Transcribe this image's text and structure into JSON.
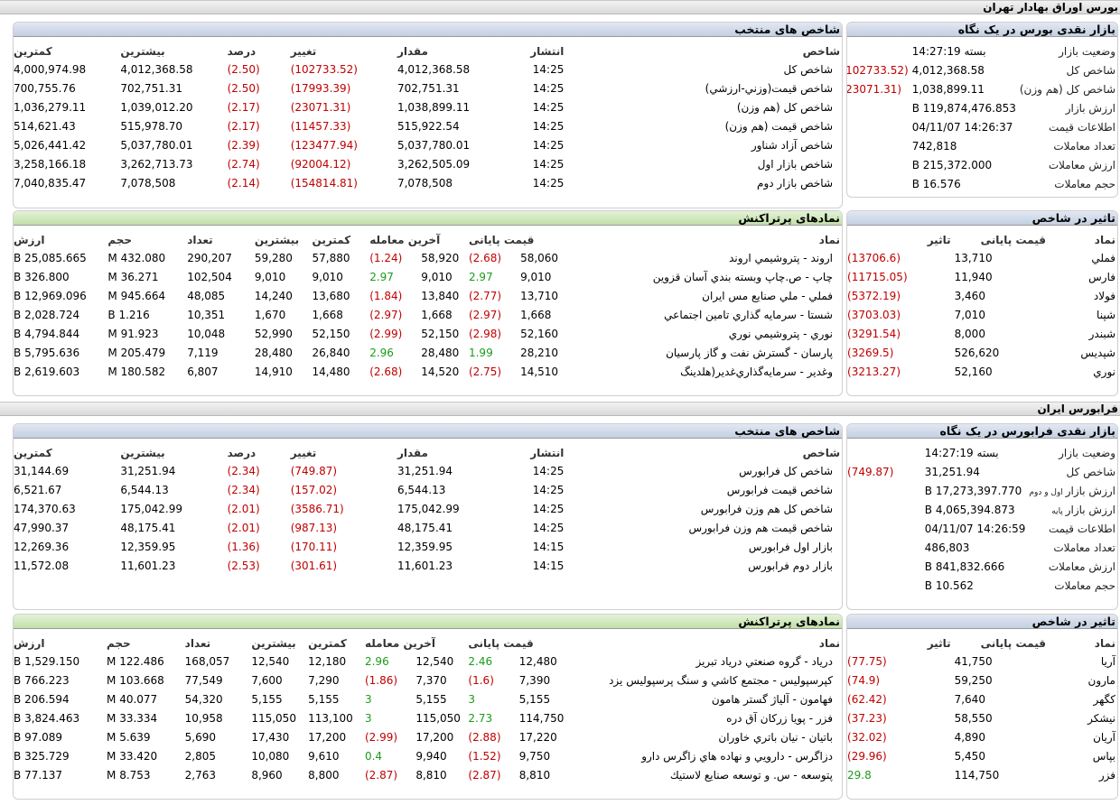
{
  "tse": {
    "title": "بورس اوراق بهادار تهران",
    "summary": {
      "title": "بازار نقدی بورس در یک نگاه",
      "rows": [
        {
          "label": "وضعیت بازار",
          "value": "بسته 14:27:19",
          "change": ""
        },
        {
          "label": "شاخص کل",
          "value": "4,012,368.58",
          "change": "(102733.52)"
        },
        {
          "label": "شاخص کل (هم وزن)",
          "value": "1,038,899.11",
          "change": "(23071.31)"
        },
        {
          "label": "ارزش بازار",
          "value": "119,874,476.853 B",
          "change": ""
        },
        {
          "label": "اطلاعات قیمت",
          "value": "14:26:37 04/11/07",
          "change": ""
        },
        {
          "label": "تعداد معاملات",
          "value": "742,818",
          "change": ""
        },
        {
          "label": "ارزش معاملات",
          "value": "215,372.000 B",
          "change": ""
        },
        {
          "label": "حجم معاملات",
          "value": "16.576 B",
          "change": ""
        }
      ]
    },
    "indices": {
      "title": "شاخص های منتخب",
      "headers": [
        "شاخص",
        "انتشار",
        "مقدار",
        "تغییر",
        "درصد",
        "بیشترین",
        "کمترین"
      ],
      "rows": [
        {
          "name": "شاخص كل",
          "time": "14:25",
          "value": "4,012,368.58",
          "change": "(102733.52)",
          "pct": "(2.50)",
          "high": "4,012,368.58",
          "low": "4,000,974.98"
        },
        {
          "name": "شاخص قيمت(وزني-ارزشي)",
          "time": "14:25",
          "value": "702,751.31",
          "change": "(17993.39)",
          "pct": "(2.50)",
          "high": "702,751.31",
          "low": "700,755.76"
        },
        {
          "name": "شاخص كل (هم وزن)",
          "time": "14:25",
          "value": "1,038,899.11",
          "change": "(23071.31)",
          "pct": "(2.17)",
          "high": "1,039,012.20",
          "low": "1,036,279.11"
        },
        {
          "name": "شاخص قيمت (هم وزن)",
          "time": "14:25",
          "value": "515,922.54",
          "change": "(11457.33)",
          "pct": "(2.17)",
          "high": "515,978.70",
          "low": "514,621.43"
        },
        {
          "name": "شاخص آزاد شناور",
          "time": "14:25",
          "value": "5,037,780.01",
          "change": "(123477.94)",
          "pct": "(2.39)",
          "high": "5,037,780.01",
          "low": "5,026,441.42"
        },
        {
          "name": "شاخص بازار اول",
          "time": "14:25",
          "value": "3,262,505.09",
          "change": "(92004.12)",
          "pct": "(2.74)",
          "high": "3,262,713.73",
          "low": "3,258,166.18"
        },
        {
          "name": "شاخص بازار دوم",
          "time": "14:25",
          "value": "7,078,508",
          "change": "(154814.81)",
          "pct": "(2.14)",
          "high": "7,078,508",
          "low": "7,040,835.47"
        }
      ]
    },
    "impact": {
      "title": "تاثیر در شاخص",
      "headers": [
        "نماد",
        "قیمت پایانی",
        "تاثیر"
      ],
      "rows": [
        {
          "sym": "فملي",
          "price": "13,710",
          "effect": "(13706.6)"
        },
        {
          "sym": "فارس",
          "price": "11,940",
          "effect": "(11715.05)"
        },
        {
          "sym": "فولاد",
          "price": "3,460",
          "effect": "(5372.19)"
        },
        {
          "sym": "شپنا",
          "price": "7,010",
          "effect": "(3703.03)"
        },
        {
          "sym": "شبندر",
          "price": "8,000",
          "effect": "(3291.54)"
        },
        {
          "sym": "شپديس",
          "price": "526,620",
          "effect": "(3269.5)"
        },
        {
          "sym": "نوري",
          "price": "52,160",
          "effect": "(3213.27)"
        }
      ]
    },
    "active": {
      "title": "نمادهای پرتراکنش",
      "headers": [
        "نماد",
        "قیمت پایانی",
        "آخرین معامله",
        "کمترین",
        "بیشترین",
        "تعداد",
        "حجم",
        "ارزش"
      ],
      "rows": [
        {
          "sym": "اروند - پتروشيمي اروند",
          "close": "58,060",
          "closeChg": "(2.68)",
          "last": "58,920",
          "lastChg": "(1.24)",
          "low": "57,880",
          "high": "59,280",
          "count": "290,207",
          "vol": "432.080 M",
          "val": "25,085.665 B"
        },
        {
          "sym": "چاپ - ص.چاپ وبسته بندي آسان قزوين",
          "close": "9,010",
          "closeChg": "2.97",
          "last": "9,010",
          "lastChg": "2.97",
          "low": "9,010",
          "high": "9,010",
          "count": "102,504",
          "vol": "36.271 M",
          "val": "326.800 B"
        },
        {
          "sym": "فملي - ملي صنايع مس ايران",
          "close": "13,710",
          "closeChg": "(2.77)",
          "last": "13,840",
          "lastChg": "(1.84)",
          "low": "13,680",
          "high": "14,240",
          "count": "48,085",
          "vol": "945.664 M",
          "val": "12,969.096 B"
        },
        {
          "sym": "شستا - سرمايه گذاري تامين اجتماعي",
          "close": "1,668",
          "closeChg": "(2.97)",
          "last": "1,668",
          "lastChg": "(2.97)",
          "low": "1,668",
          "high": "1,670",
          "count": "10,351",
          "vol": "1.216 B",
          "val": "2,028.724 B"
        },
        {
          "sym": "نوري - پتروشيمي نوري",
          "close": "52,160",
          "closeChg": "(2.98)",
          "last": "52,150",
          "lastChg": "(2.99)",
          "low": "52,150",
          "high": "52,990",
          "count": "10,048",
          "vol": "91.923 M",
          "val": "4,794.844 B"
        },
        {
          "sym": "پارسان - گسترش نفت و گاز پارسيان",
          "close": "28,210",
          "closeChg": "1.99",
          "last": "28,480",
          "lastChg": "2.96",
          "low": "26,840",
          "high": "28,480",
          "count": "7,119",
          "vol": "205.479 M",
          "val": "5,795.636 B"
        },
        {
          "sym": "وغدير - سرمايه‌گذاري‌غدير(هلدينگ",
          "close": "14,510",
          "closeChg": "(2.75)",
          "last": "14,520",
          "lastChg": "(2.68)",
          "low": "14,480",
          "high": "14,910",
          "count": "6,807",
          "vol": "180.582 M",
          "val": "2,619.603 B"
        }
      ]
    }
  },
  "ifb": {
    "title": "فرابورس ایران",
    "summary": {
      "title": "بازار نقدی فرابورس در یک نگاه",
      "rows": [
        {
          "label": "وضعیت بازار",
          "small": "",
          "value": "بسته 14:27:19",
          "change": ""
        },
        {
          "label": "شاخص کل",
          "small": "",
          "value": "31,251.94",
          "change": "(749.87)"
        },
        {
          "label": "ارزش بازار",
          "small": "اول و دوم",
          "value": "17,273,397.770 B",
          "change": ""
        },
        {
          "label": "ارزش بازار",
          "small": "پایه",
          "value": "4,065,394.873 B",
          "change": ""
        },
        {
          "label": "اطلاعات قیمت",
          "small": "",
          "value": "14:26:59 04/11/07",
          "change": ""
        },
        {
          "label": "تعداد معاملات",
          "small": "",
          "value": "486,803",
          "change": ""
        },
        {
          "label": "ارزش معاملات",
          "small": "",
          "value": "841,832.666 B",
          "change": ""
        },
        {
          "label": "حجم معاملات",
          "small": "",
          "value": "10.562 B",
          "change": ""
        }
      ]
    },
    "indices": {
      "title": "شاخص های منتخب",
      "headers": [
        "شاخص",
        "انتشار",
        "مقدار",
        "تغییر",
        "درصد",
        "بیشترین",
        "کمترین"
      ],
      "rows": [
        {
          "name": "شاخص كل فرابورس",
          "time": "14:25",
          "value": "31,251.94",
          "change": "(749.87)",
          "pct": "(2.34)",
          "high": "31,251.94",
          "low": "31,144.69"
        },
        {
          "name": "شاخص قيمت فرابورس",
          "time": "14:25",
          "value": "6,544.13",
          "change": "(157.02)",
          "pct": "(2.34)",
          "high": "6,544.13",
          "low": "6,521.67"
        },
        {
          "name": "شاخص کل هم وزن فرابورس",
          "time": "14:25",
          "value": "175,042.99",
          "change": "(3586.71)",
          "pct": "(2.01)",
          "high": "175,042.99",
          "low": "174,370.63"
        },
        {
          "name": "شاخص قیمت هم وزن فرابورس",
          "time": "14:25",
          "value": "48,175.41",
          "change": "(987.13)",
          "pct": "(2.01)",
          "high": "48,175.41",
          "low": "47,990.37"
        },
        {
          "name": "بازار اول فرابورس",
          "time": "14:15",
          "value": "12,359.95",
          "change": "(170.11)",
          "pct": "(1.36)",
          "high": "12,359.95",
          "low": "12,269.36"
        },
        {
          "name": "بازار دوم فرابورس",
          "time": "14:15",
          "value": "11,601.23",
          "change": "(301.61)",
          "pct": "(2.53)",
          "high": "11,601.23",
          "low": "11,572.08"
        }
      ]
    },
    "impact": {
      "title": "تاثیر در شاخص",
      "headers": [
        "نماد",
        "قیمت پایانی",
        "تاثیر"
      ],
      "rows": [
        {
          "sym": "آريا",
          "price": "41,750",
          "effect": "(77.75)"
        },
        {
          "sym": "مارون",
          "price": "59,250",
          "effect": "(74.9)"
        },
        {
          "sym": "كگهر",
          "price": "7,640",
          "effect": "(62.42)"
        },
        {
          "sym": "نيشكر",
          "price": "58,550",
          "effect": "(37.23)"
        },
        {
          "sym": "آريان",
          "price": "4,890",
          "effect": "(32.02)"
        },
        {
          "sym": "بپاس",
          "price": "5,450",
          "effect": "(29.96)"
        },
        {
          "sym": "فزر",
          "price": "114,750",
          "effect": "29.8"
        }
      ]
    },
    "active": {
      "title": "نمادهای پرتراکنش",
      "headers": [
        "نماد",
        "قیمت پایانی",
        "آخرین معامله",
        "کمترین",
        "بیشترین",
        "تعداد",
        "حجم",
        "ارزش"
      ],
      "rows": [
        {
          "sym": "درياد - گروه صنعتي درياد تبريز",
          "close": "12,480",
          "closeChg": "2.46",
          "last": "12,540",
          "lastChg": "2.96",
          "low": "12,180",
          "high": "12,540",
          "count": "168,057",
          "vol": "122.486 M",
          "val": "1,529.150 B"
        },
        {
          "sym": "كپرسپوليس - مجتمع كاشي و سنگ پرسپوليس يزد",
          "close": "7,390",
          "closeChg": "(1.6)",
          "last": "7,370",
          "lastChg": "(1.86)",
          "low": "7,290",
          "high": "7,600",
          "count": "77,549",
          "vol": "103.668 M",
          "val": "766.223 B"
        },
        {
          "sym": "فهامون - آلیاژ گستر هامون",
          "close": "5,155",
          "closeChg": "3",
          "last": "5,155",
          "lastChg": "3",
          "low": "5,155",
          "high": "5,155",
          "count": "54,320",
          "vol": "40.077 M",
          "val": "206.594 B"
        },
        {
          "sym": "فزر - پويا زركان آق دره",
          "close": "114,750",
          "closeChg": "2.73",
          "last": "115,050",
          "lastChg": "3",
          "low": "113,100",
          "high": "115,050",
          "count": "10,958",
          "vol": "33.334 M",
          "val": "3,824.463 B"
        },
        {
          "sym": "باتيان - نيان باتري خاوران",
          "close": "17,220",
          "closeChg": "(2.88)",
          "last": "17,200",
          "lastChg": "(2.99)",
          "low": "17,200",
          "high": "17,430",
          "count": "5,690",
          "vol": "5.639 M",
          "val": "97.089 B"
        },
        {
          "sym": "دزاگرس - دارويي و نهاده هاي زاگرس دارو",
          "close": "9,750",
          "closeChg": "(1.52)",
          "last": "9,940",
          "lastChg": "0.4",
          "low": "9,610",
          "high": "10,080",
          "count": "2,805",
          "vol": "33.420 M",
          "val": "325.729 B"
        },
        {
          "sym": "پتوسعه - س. و توسعه صنايع لاستيك",
          "close": "8,810",
          "closeChg": "(2.87)",
          "last": "8,810",
          "lastChg": "(2.87)",
          "low": "8,800",
          "high": "8,960",
          "count": "2,763",
          "vol": "8.753 M",
          "val": "77.137 B"
        }
      ]
    }
  }
}
